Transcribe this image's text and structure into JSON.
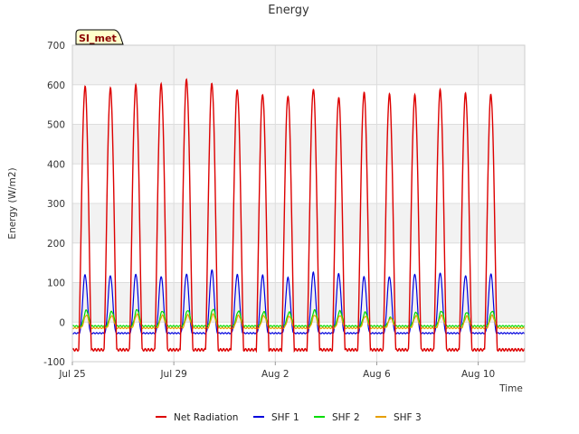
{
  "chart_data": {
    "type": "line",
    "title": "Energy",
    "xlabel": "Time",
    "ylabel": "Energy (W/m2)",
    "ylim": [
      -100,
      700
    ],
    "yticks": [
      -100,
      0,
      100,
      200,
      300,
      400,
      500,
      600,
      700
    ],
    "xlim": [
      "2024-07-25",
      "2024-08-11 20:00"
    ],
    "xticks": [
      {
        "date": "2024-07-25",
        "label": "Jul 25"
      },
      {
        "date": "2024-07-29",
        "label": "Jul 29"
      },
      {
        "date": "2024-08-02",
        "label": "Aug 2"
      },
      {
        "date": "2024-08-06",
        "label": "Aug 6"
      },
      {
        "date": "2024-08-10",
        "label": "Aug 10"
      }
    ],
    "grid": true,
    "legend_position": "bottom",
    "badge": "SI_met",
    "days": [
      "2024-07-25",
      "2024-07-26",
      "2024-07-27",
      "2024-07-28",
      "2024-07-29",
      "2024-07-30",
      "2024-07-31",
      "2024-08-01",
      "2024-08-02",
      "2024-08-03",
      "2024-08-04",
      "2024-08-05",
      "2024-08-06",
      "2024-08-07",
      "2024-08-08",
      "2024-08-09",
      "2024-08-10",
      "2024-08-11"
    ],
    "series": [
      {
        "name": "Net Radiation",
        "color": "#dd0000",
        "night_value": -70,
        "daily_peak": [
          595,
          590,
          597,
          600,
          612,
          603,
          588,
          577,
          573,
          590,
          568,
          580,
          575,
          572,
          585,
          577,
          575,
          0
        ]
      },
      {
        "name": "SHF 1",
        "color": "#0000dd",
        "night_value": -28,
        "daily_peak": [
          120,
          118,
          122,
          116,
          122,
          132,
          120,
          118,
          112,
          125,
          122,
          115,
          115,
          122,
          125,
          118,
          122,
          0
        ]
      },
      {
        "name": "SHF 2",
        "color": "#00dd00",
        "night_value": -10,
        "daily_peak": [
          30,
          27,
          32,
          28,
          30,
          33,
          28,
          26,
          25,
          30,
          28,
          25,
          12,
          25,
          28,
          25,
          28,
          0
        ]
      },
      {
        "name": "SHF 3",
        "color": "#e69f00",
        "night_value": -15,
        "daily_peak": [
          18,
          16,
          20,
          17,
          18,
          20,
          17,
          16,
          15,
          18,
          17,
          15,
          10,
          16,
          17,
          15,
          17,
          0
        ]
      }
    ]
  }
}
